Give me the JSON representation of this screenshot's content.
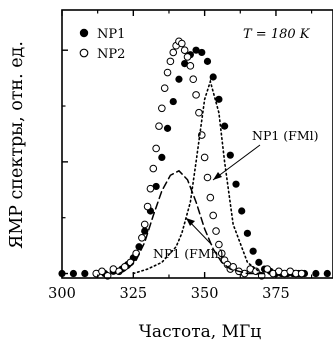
{
  "chart_data": {
    "type": "scatter",
    "xlabel": "Частота, МГц",
    "ylabel": "ЯМР спектры, отн. ед.",
    "xlim": [
      300,
      395
    ],
    "ylim": [
      -0.02,
      1.18
    ],
    "xticks": [
      "300",
      "325",
      "350",
      "375"
    ],
    "temperature_label": "T = 180 K",
    "series": [
      {
        "name": "NP1",
        "marker": "filled-circle",
        "x": [
          300,
          304,
          308,
          312,
          315,
          318,
          321,
          323,
          325,
          327,
          329,
          331,
          333,
          335,
          337,
          339,
          341,
          343,
          345,
          347,
          349,
          351,
          353,
          355,
          357,
          359,
          361,
          363,
          365,
          367,
          369,
          371,
          373,
          375,
          377,
          379,
          381,
          383,
          385,
          389,
          393
        ],
        "y": [
          0.0,
          0.0,
          0.0,
          0.0,
          0.0,
          0.01,
          0.02,
          0.04,
          0.07,
          0.12,
          0.19,
          0.28,
          0.39,
          0.52,
          0.65,
          0.77,
          0.87,
          0.94,
          0.98,
          1.0,
          0.99,
          0.95,
          0.88,
          0.78,
          0.66,
          0.53,
          0.4,
          0.28,
          0.18,
          0.1,
          0.05,
          0.02,
          0.01,
          0.0,
          0.0,
          0.0,
          0.0,
          0.0,
          0.0,
          0.0,
          0.0
        ]
      },
      {
        "name": "NP2",
        "marker": "open-circle",
        "x": [
          312,
          314,
          316,
          318,
          320,
          322,
          324,
          326,
          328,
          329,
          330,
          331,
          332,
          333,
          334,
          335,
          336,
          337,
          338,
          339,
          340,
          341,
          342,
          343,
          344,
          345,
          346,
          347,
          348,
          349,
          350,
          351,
          352,
          353,
          354,
          355,
          356,
          357,
          358,
          359,
          360,
          362,
          364,
          366,
          368,
          370,
          372,
          374,
          376,
          378,
          380,
          382,
          384
        ],
        "y": [
          0.0,
          0.01,
          -0.01,
          0.02,
          0.01,
          0.03,
          0.05,
          0.09,
          0.16,
          0.22,
          0.3,
          0.38,
          0.47,
          0.56,
          0.66,
          0.74,
          0.83,
          0.9,
          0.95,
          0.99,
          1.02,
          1.04,
          1.03,
          1.0,
          0.97,
          0.93,
          0.87,
          0.8,
          0.72,
          0.62,
          0.52,
          0.43,
          0.34,
          0.26,
          0.19,
          0.13,
          0.09,
          0.06,
          0.04,
          0.02,
          0.03,
          0.01,
          0.0,
          0.02,
          0.01,
          -0.01,
          0.02,
          0.0,
          0.01,
          0.0,
          0.01,
          0.0,
          0.0
        ]
      },
      {
        "name": "NP1 (FMh)",
        "style": "dotted",
        "x": [
          325,
          330,
          335,
          340,
          342,
          345,
          347,
          350,
          352,
          355,
          357,
          360,
          365,
          370
        ],
        "y": [
          0.0,
          0.02,
          0.05,
          0.12,
          0.18,
          0.32,
          0.5,
          0.78,
          0.86,
          0.72,
          0.5,
          0.22,
          0.05,
          0.0
        ]
      },
      {
        "name": "NP1 (FMl)",
        "style": "dashed",
        "x": [
          320,
          323,
          326,
          329,
          332,
          335,
          338,
          341,
          344,
          347,
          350,
          353,
          356,
          359,
          362,
          365,
          368,
          372
        ],
        "y": [
          0.0,
          0.02,
          0.06,
          0.14,
          0.26,
          0.37,
          0.44,
          0.46,
          0.42,
          0.32,
          0.2,
          0.11,
          0.05,
          0.02,
          0.01,
          0.0,
          0.0,
          0.0
        ]
      }
    ],
    "legend": {
      "position": "top-left",
      "entries": [
        "NP1",
        "NP2"
      ]
    },
    "annotations": [
      "NP1 (FMl)",
      "NP1 (FMh)"
    ],
    "grid": false
  }
}
